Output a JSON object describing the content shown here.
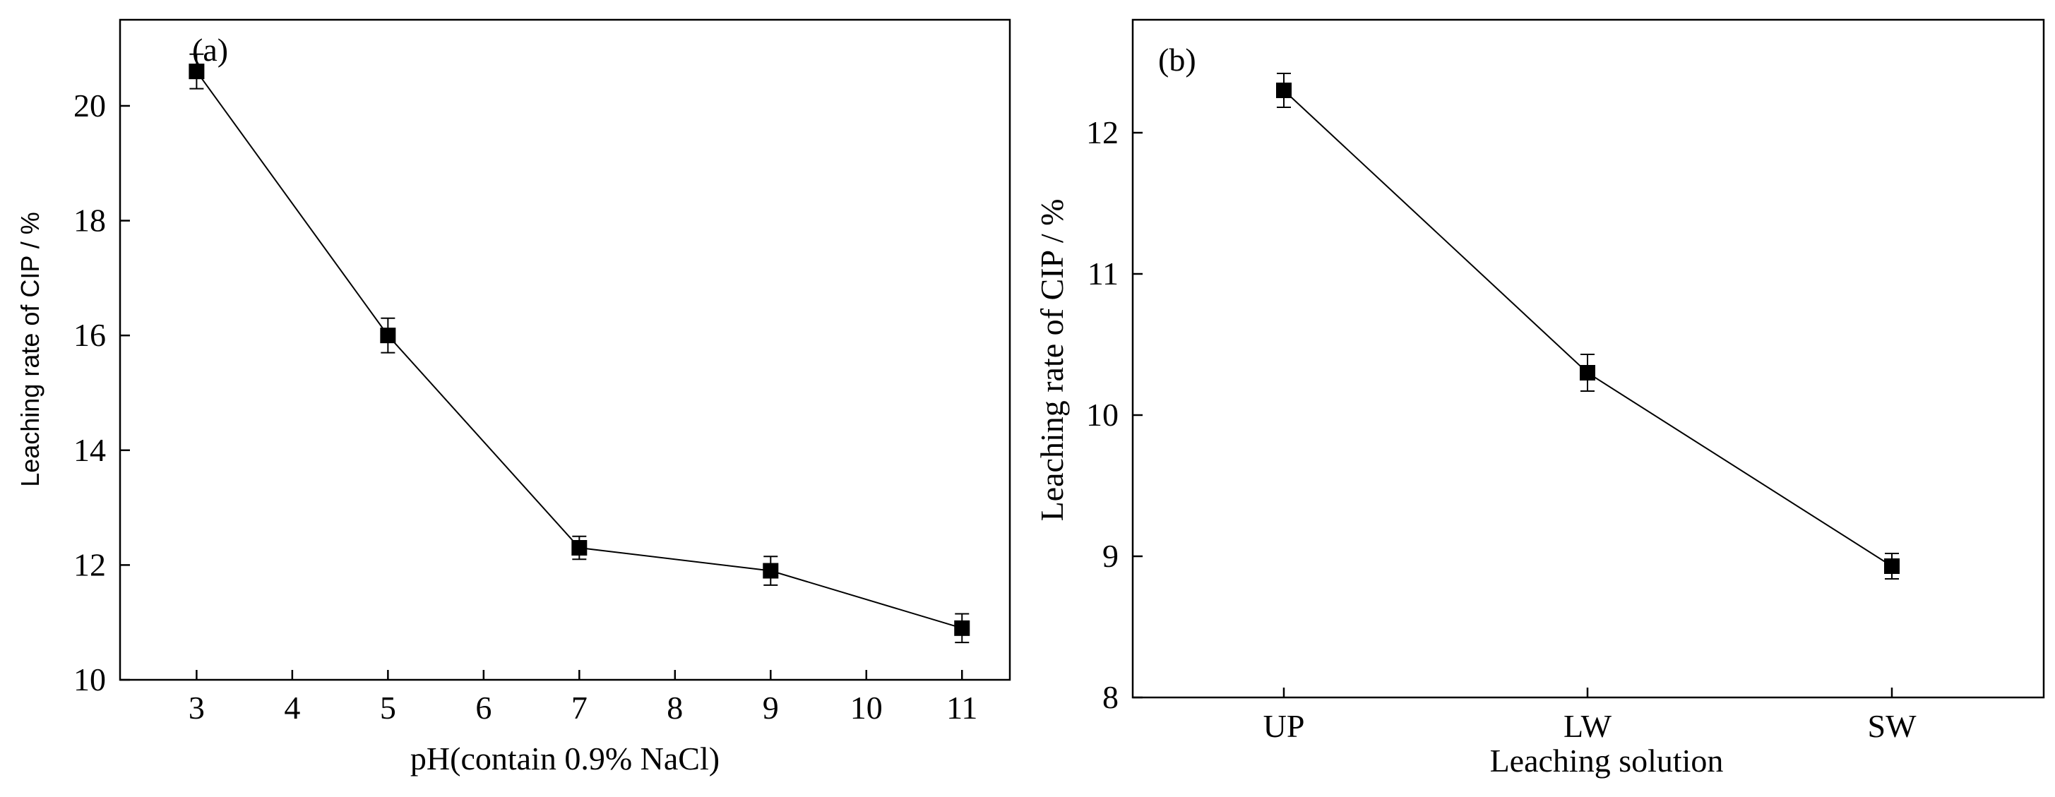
{
  "chart_data": [
    {
      "panel_label": "(a)",
      "type": "line",
      "xlabel": "pH(contain 0.9% NaCl)",
      "ylabel": "Leaching rate of CIP / %",
      "xlim": [
        2.2,
        11.5
      ],
      "ylim": [
        10,
        21.5
      ],
      "xticks": [
        3,
        4,
        5,
        6,
        7,
        8,
        9,
        10,
        11
      ],
      "yticks": [
        10,
        12,
        14,
        16,
        18,
        20
      ],
      "grid": false,
      "x": [
        3,
        5,
        7,
        9,
        11
      ],
      "y": [
        20.6,
        16.0,
        12.3,
        11.9,
        10.9
      ],
      "error": [
        0.3,
        0.3,
        0.2,
        0.25,
        0.25
      ]
    },
    {
      "panel_label": "(b)",
      "type": "line",
      "xlabel": "Leaching solution",
      "ylabel": "Leaching rate of CIP / %",
      "categories": [
        "UP",
        "LW",
        "SW"
      ],
      "ylim": [
        8,
        12.8
      ],
      "yticks": [
        8,
        9,
        10,
        11,
        12
      ],
      "grid": false,
      "values": [
        12.3,
        10.3,
        8.93
      ],
      "error": [
        0.12,
        0.13,
        0.09
      ]
    }
  ]
}
